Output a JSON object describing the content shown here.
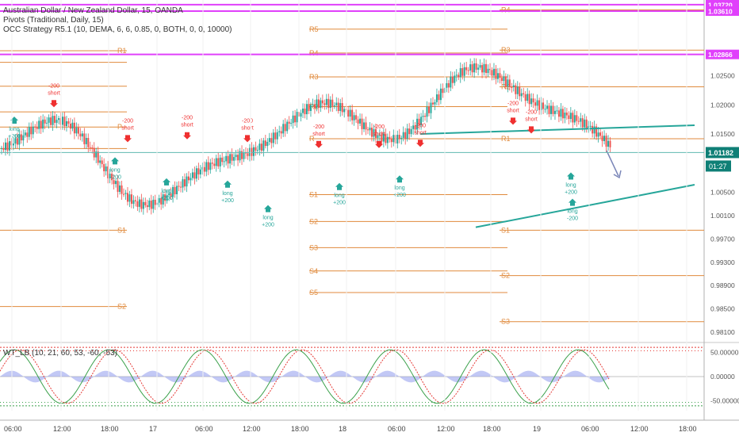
{
  "legend": {
    "title": "Australian Dollar / New Zealand Dollar, 15, OANDA",
    "pivots": "Pivots (Traditional, Daily, 15)",
    "strategy": "OCC Strategy R5.1 (10, DEMA, 6, 6, 0.85, 0, BOTH, 0, 0, 10000)",
    "oscillator": "WT_LB (10, 21, 60, 53, -60, -53)"
  },
  "colors": {
    "pivot": "#e08a3c",
    "magenta": "#e040fb",
    "trend": "#26a69a",
    "up_candle": "#26a69a",
    "down_candle": "#ef5350",
    "buy_arrow": "#26a69a",
    "sell_arrow": "#ef3030",
    "projection": "#7a86b8",
    "current_line": "#5fb8b0",
    "price_badge": "#0f7f76",
    "wt1": "#3aa04a",
    "wt2": "#e53935",
    "wt_hist": "#9aa3ee"
  },
  "chart_data": {
    "type": "candlestick",
    "symbol": "Australian Dollar / New Zealand Dollar, 15, OANDA",
    "price_axis": {
      "ticks": [
        "1.02500",
        "1.02000",
        "1.01500",
        "1.00500",
        "1.00100",
        "0.99700",
        "0.99300",
        "0.98900",
        "0.98500",
        "0.98100"
      ],
      "range": [
        0.9795,
        1.038
      ]
    },
    "highlighted_levels": [
      {
        "label": "1.03720",
        "value": 1.0372,
        "color": "#e040fb"
      },
      {
        "label": "1.03610",
        "value": 1.0361,
        "color": "#e040fb"
      },
      {
        "label": "1.02866",
        "value": 1.02866,
        "color": "#e040fb"
      }
    ],
    "current_price": {
      "label": "1.01182",
      "value": 1.01182
    },
    "countdown": "01:27",
    "pivot_labels": [
      {
        "label": "R1",
        "value": 1.0293
      },
      {
        "label": "P",
        "value": 1.0162
      },
      {
        "label": "S1",
        "value": 0.9985
      },
      {
        "label": "S2",
        "value": 0.9854
      },
      {
        "label": "R5",
        "value": 1.033
      },
      {
        "label": "R4",
        "value": 1.0289
      },
      {
        "label": "R3",
        "value": 1.0248
      },
      {
        "label": "R2",
        "value": 1.0197
      },
      {
        "label": "R",
        "value": 1.0142
      },
      {
        "label": "S1",
        "value": 1.0046
      },
      {
        "label": "S2",
        "value": 1.0
      },
      {
        "label": "S3",
        "value": 0.9955
      },
      {
        "label": "S4",
        "value": 0.9915
      },
      {
        "label": "S5",
        "value": 0.9878
      },
      {
        "label": "R4",
        "value": 1.0363
      },
      {
        "label": "R3",
        "value": 1.0294
      },
      {
        "label": "R2",
        "value": 1.0231
      },
      {
        "label": "R1",
        "value": 1.0142
      },
      {
        "label": "S1",
        "value": 0.9985
      },
      {
        "label": "S2",
        "value": 0.9907
      },
      {
        "label": "S3",
        "value": 0.9828
      }
    ],
    "time_axis": {
      "labels": [
        "06:00",
        "12:00",
        "18:00",
        "17",
        "06:00",
        "12:00",
        "18:00",
        "18",
        "06:00",
        "12:00",
        "18:00",
        "19",
        "06:00",
        "12:00",
        "18:00"
      ]
    },
    "trend_lines": [
      {
        "from": [
          "18 09:00",
          1.015
        ],
        "to": [
          "19 12:00",
          1.0165
        ]
      },
      {
        "from": [
          "18 16:00",
          0.999
        ],
        "to": [
          "19 12:00",
          1.0063
        ]
      }
    ],
    "signals": [
      {
        "type": "sell",
        "label": "-200\nshort",
        "time": "16 12:00",
        "price": 1.02
      },
      {
        "type": "buy",
        "label": "long\n+200",
        "time": "16 03:00",
        "price": 1.0176
      },
      {
        "type": "sell",
        "label": "-200\nshort",
        "time": "16 21:00",
        "price": 1.014
      },
      {
        "type": "buy",
        "label": "long\n+200",
        "time": "16 17:00",
        "price": 1.0106
      },
      {
        "type": "sell",
        "label": "-200\nshort",
        "time": "17 01:00",
        "price": 1.0145
      },
      {
        "type": "buy",
        "label": "long\n+200",
        "time": "17 03:00",
        "price": 1.007
      },
      {
        "type": "sell",
        "label": "-200\nshort",
        "time": "17 05:00",
        "price": 1.014
      },
      {
        "type": "buy",
        "label": "long\n+200",
        "time": "17 10:00",
        "price": 1.0066
      },
      {
        "type": "sell",
        "label": "-200\nshort",
        "time": "17 12:00",
        "price": 1.013
      },
      {
        "type": "buy",
        "label": "long\n+200",
        "time": "17 15:00",
        "price": 1.0024
      },
      {
        "type": "sell",
        "label": "-200\nshort",
        "time": "17 22:00",
        "price": 1.013
      },
      {
        "type": "buy",
        "label": "long\n+200",
        "time": "18 02:00",
        "price": 1.0062
      },
      {
        "type": "sell",
        "label": "-200\nshort",
        "time": "18 05:00",
        "price": 1.0132
      },
      {
        "type": "buy",
        "label": "long\n+200",
        "time": "18 08:00",
        "price": 1.0075
      },
      {
        "type": "sell",
        "label": "-200\nshort",
        "time": "18 10:00",
        "price": 1.0155
      },
      {
        "type": "sell",
        "label": "-200\nshort",
        "time": "19 00:00",
        "price": 1.017
      },
      {
        "type": "buy",
        "label": "long\n+200",
        "time": "18 22:00",
        "price": 1.008
      },
      {
        "type": "buy",
        "label": "long\n-200",
        "time": "19 05:00",
        "price": 1.0035
      }
    ],
    "oscillator": {
      "name": "WT_LB (10, 21, 60, 53, -60, -53)",
      "ticks": [
        "50.00000",
        "0.00000",
        "-50.00000"
      ],
      "overbought": [
        60,
        53
      ],
      "oversold": [
        -60,
        -53
      ]
    }
  }
}
